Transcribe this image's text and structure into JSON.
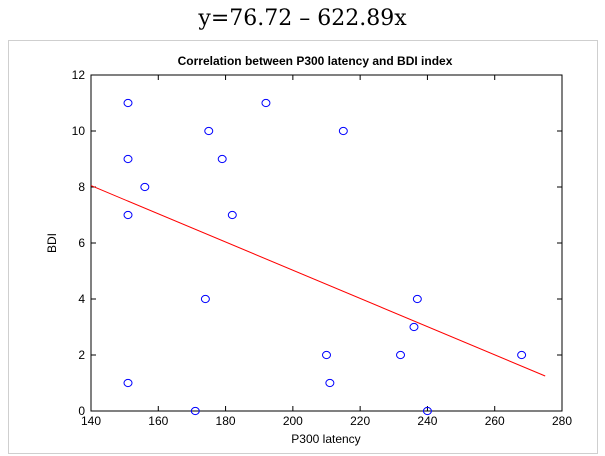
{
  "equation": "y=76.72 – 622.89x",
  "chart_data": {
    "type": "scatter",
    "title": "Correlation between P300 latency and BDI index",
    "xlabel": "P300 latency",
    "ylabel": "BDI",
    "xlim": [
      140,
      280
    ],
    "ylim": [
      0,
      12
    ],
    "xticks": [
      140,
      160,
      180,
      200,
      220,
      240,
      260,
      280
    ],
    "yticks": [
      0,
      2,
      4,
      6,
      8,
      10,
      12
    ],
    "grid": false,
    "points": [
      {
        "x": 151,
        "y": 11
      },
      {
        "x": 151,
        "y": 9
      },
      {
        "x": 151,
        "y": 7
      },
      {
        "x": 151,
        "y": 1
      },
      {
        "x": 156,
        "y": 8
      },
      {
        "x": 171,
        "y": 0
      },
      {
        "x": 174,
        "y": 4
      },
      {
        "x": 175,
        "y": 10
      },
      {
        "x": 179,
        "y": 9
      },
      {
        "x": 182,
        "y": 7
      },
      {
        "x": 192,
        "y": 11
      },
      {
        "x": 210,
        "y": 2
      },
      {
        "x": 211,
        "y": 1
      },
      {
        "x": 215,
        "y": 10
      },
      {
        "x": 232,
        "y": 2
      },
      {
        "x": 236,
        "y": 3
      },
      {
        "x": 237,
        "y": 4
      },
      {
        "x": 240,
        "y": 0
      },
      {
        "x": 268,
        "y": 2
      }
    ],
    "trend_line": {
      "x": [
        140,
        275
      ],
      "y": [
        8.05,
        1.25
      ]
    },
    "colors": {
      "points": "#0000ff",
      "trend_line": "#ff0000",
      "axes": "#000000"
    }
  }
}
